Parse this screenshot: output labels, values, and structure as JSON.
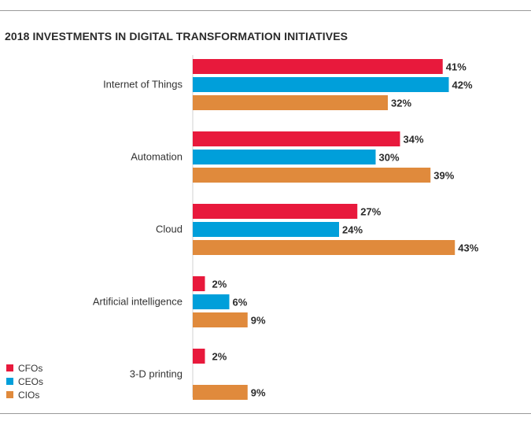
{
  "chart_data": {
    "type": "bar",
    "orientation": "horizontal",
    "title": "2018 INVESTMENTS IN DIGITAL TRANSFORMATION INITIATIVES",
    "categories": [
      "Internet of Things",
      "Automation",
      "Cloud",
      "Artificial intelligence",
      "3-D printing"
    ],
    "series": [
      {
        "name": "CFOs",
        "color": "#e8193c",
        "values": [
          41,
          34,
          27,
          2,
          2
        ],
        "labels": [
          "41%",
          "34%",
          "27%",
          "2%",
          "2%"
        ]
      },
      {
        "name": "CEOs",
        "color": "#009fda",
        "values": [
          42,
          30,
          24,
          6,
          null
        ],
        "labels": [
          "42%",
          "30%",
          "24%",
          "6%",
          null
        ]
      },
      {
        "name": "CIOs",
        "color": "#e08a3c",
        "values": [
          32,
          39,
          43,
          9,
          9
        ],
        "labels": [
          "32%",
          "39%",
          "43%",
          "9%",
          "9%"
        ]
      }
    ],
    "value_unit": "%",
    "xlim": [
      0,
      45
    ],
    "legend_position": "bottom-left",
    "grid": false
  }
}
